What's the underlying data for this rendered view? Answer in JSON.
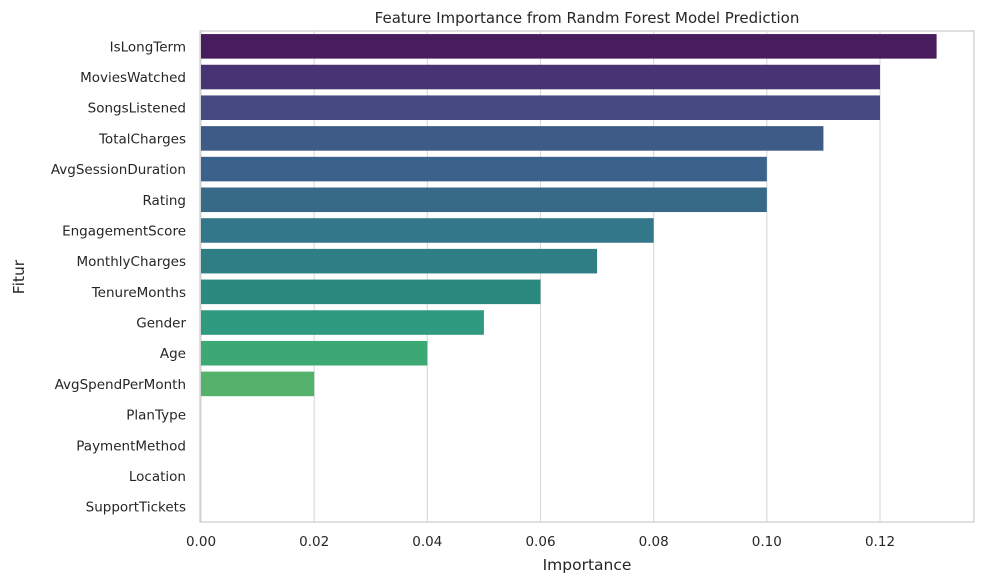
{
  "chart_data": {
    "type": "bar",
    "orientation": "horizontal",
    "title": "Feature Importance from Randm Forest Model Prediction",
    "xlabel": "Importance",
    "ylabel": "Fitur",
    "xlim": [
      0,
      0.136
    ],
    "xticks": [
      0.0,
      0.02,
      0.04,
      0.06,
      0.08,
      0.1,
      0.12
    ],
    "xtick_labels": [
      "0.00",
      "0.02",
      "0.04",
      "0.06",
      "0.08",
      "0.10",
      "0.12"
    ],
    "grid": "vertical",
    "palette": "viridis",
    "categories": [
      "IsLongTerm",
      "MoviesWatched",
      "SongsListened",
      "TotalCharges",
      "AvgSessionDuration",
      "Rating",
      "EngagementScore",
      "MonthlyCharges",
      "TenureMonths",
      "Gender",
      "Age",
      "AvgSpendPerMonth",
      "PlanType",
      "PaymentMethod",
      "Location",
      "SupportTickets"
    ],
    "values": [
      0.13,
      0.12,
      0.12,
      0.11,
      0.1,
      0.1,
      0.08,
      0.07,
      0.06,
      0.05,
      0.04,
      0.02,
      0.0,
      0.0,
      0.0,
      0.0
    ],
    "colors": [
      "#471d5e",
      "#483474",
      "#464a80",
      "#3e5a87",
      "#3a628a",
      "#376a87",
      "#33778a",
      "#2d7f83",
      "#2a8a80",
      "#2f9a7f",
      "#3ca873",
      "#55b26d",
      "#7ec74c",
      "#a9d634",
      "#d1e130",
      "#f0e72c"
    ]
  }
}
